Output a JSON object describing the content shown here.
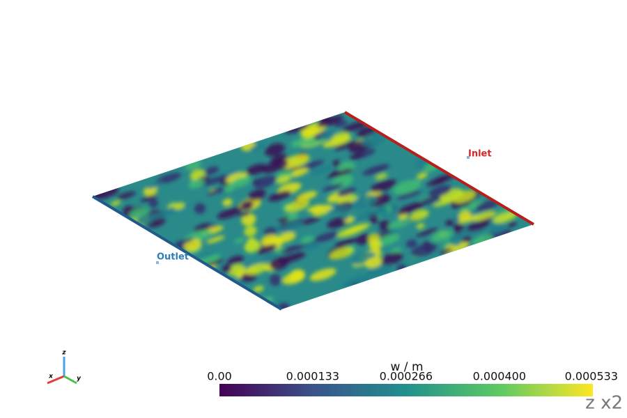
{
  "labels": {
    "inlet": "Inlet",
    "outlet": "Outlet"
  },
  "colorbar": {
    "title": "w / m",
    "ticks": [
      "0.00",
      "0.000133",
      "0.000266",
      "0.000400",
      "0.000533"
    ]
  },
  "scale_note": "z x2",
  "axes": {
    "x": "x",
    "y": "y",
    "z": "z"
  }
}
